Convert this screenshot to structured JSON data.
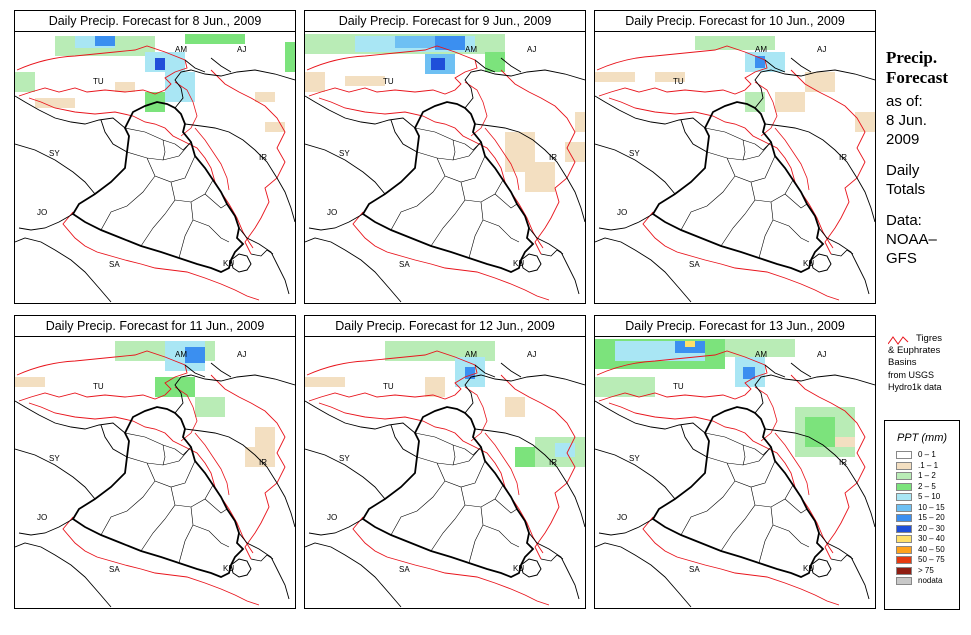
{
  "panels": [
    {
      "title": "Daily Precip. Forecast for  8 Jun., 2009"
    },
    {
      "title": "Daily Precip. Forecast for  9 Jun., 2009"
    },
    {
      "title": "Daily Precip. Forecast for  10 Jun., 2009"
    },
    {
      "title": "Daily Precip. Forecast for  11 Jun., 2009"
    },
    {
      "title": "Daily Precip. Forecast for  12 Jun., 2009"
    },
    {
      "title": "Daily Precip. Forecast for  13 Jun., 2009"
    }
  ],
  "country_labels": {
    "am": "AM",
    "aj": "AJ",
    "tu": "TU",
    "sy": "SY",
    "ir": "IR",
    "jo": "JO",
    "sa": "SA",
    "ku": "KU"
  },
  "side": {
    "title_1": "Precip.",
    "title_2": "Forecast",
    "asof": "as of:",
    "date_1": "8 Jun.",
    "date_2": "2009",
    "daily_1": "Daily",
    "daily_2": "Totals",
    "data_1": "Data:",
    "data_2": "NOAA–",
    "data_3": "GFS"
  },
  "basin_legend": {
    "line1": "Tigres",
    "line2": "& Euphrates",
    "line3": "Basins",
    "line4": "from USGS",
    "line5": "Hydro1k data",
    "line_color": "#e8141c"
  },
  "legend": {
    "title": "PPT (mm)",
    "items": [
      {
        "label": "0 – 1",
        "color": "#ffffff"
      },
      {
        "label": ".1 – 1",
        "color": "#f3dfc1"
      },
      {
        "label": "1 – 2",
        "color": "#b9ecb6"
      },
      {
        "label": "2 – 5",
        "color": "#7ce37c"
      },
      {
        "label": "5 – 10",
        "color": "#a9e6f4"
      },
      {
        "label": "10 – 15",
        "color": "#6ec0f3"
      },
      {
        "label": "15 – 20",
        "color": "#3b8ff0"
      },
      {
        "label": "20 – 30",
        "color": "#1f4fd9"
      },
      {
        "label": "30 – 40",
        "color": "#ffe06a"
      },
      {
        "label": "40 – 50",
        "color": "#ffa21c"
      },
      {
        "label": "50 – 75",
        "color": "#e53a10"
      },
      {
        "label": "> 75",
        "color": "#8f1d12"
      },
      {
        "label": "nodata",
        "color": "#c8c8c8"
      }
    ]
  }
}
